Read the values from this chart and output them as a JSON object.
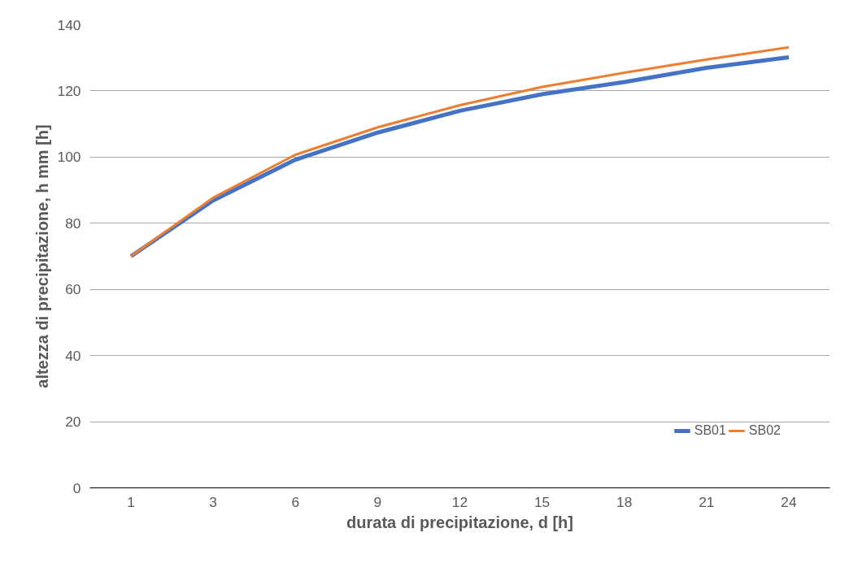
{
  "chart_data": {
    "type": "line",
    "xlabel": "durata di precipitazione, d [h]",
    "ylabel": "altezza di precipitazione, h mm [h]",
    "categories": [
      "1",
      "3",
      "6",
      "9",
      "12",
      "15",
      "18",
      "21",
      "24"
    ],
    "series": [
      {
        "name": "SB01",
        "color": "#4472c4",
        "values": [
          70,
          86.9,
          99.2,
          107.4,
          114,
          119,
          122.7,
          127,
          130.2
        ]
      },
      {
        "name": "SB02",
        "color": "#ed7d31",
        "values": [
          70,
          87.7,
          100.7,
          109,
          115.7,
          121.2,
          125.5,
          129.5,
          133.2
        ]
      }
    ],
    "ylim": [
      0,
      140
    ],
    "yticks": [
      0,
      20,
      40,
      60,
      80,
      100,
      120,
      140
    ],
    "grid": "y",
    "legend": "bottom right",
    "marker": "none",
    "line_style": "solid"
  }
}
